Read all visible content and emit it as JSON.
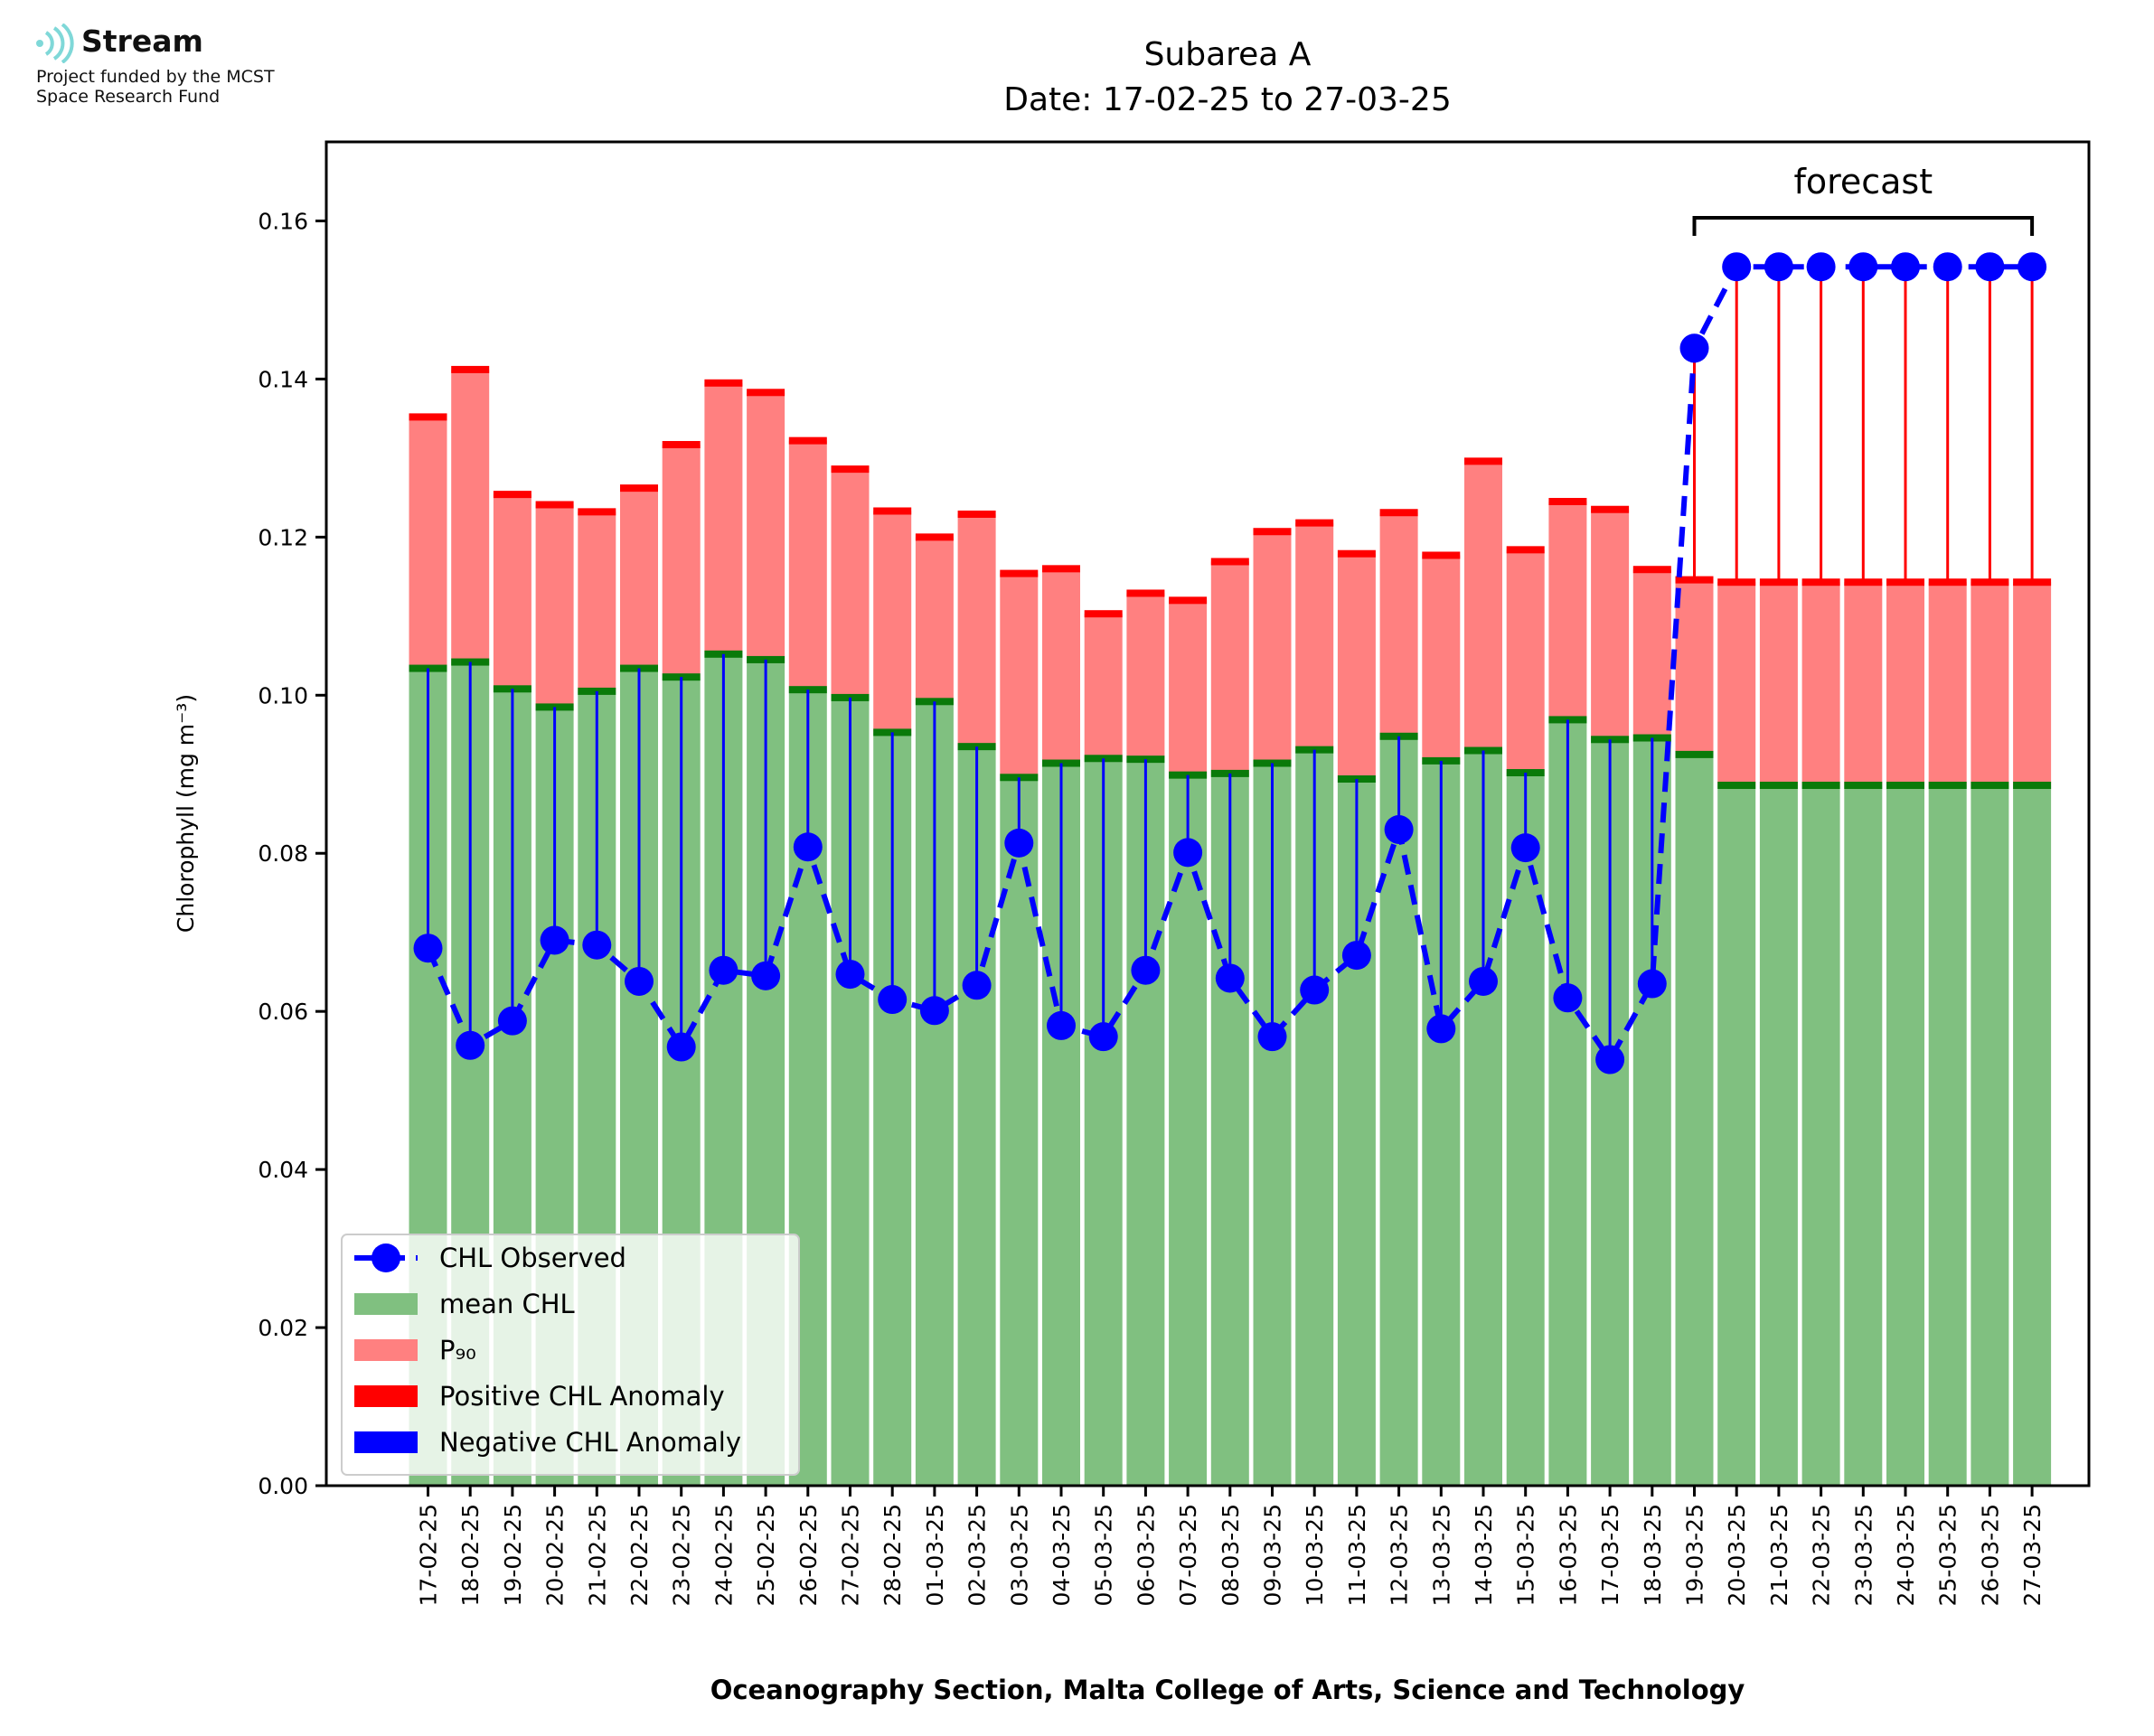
{
  "logo": {
    "name": "Stream",
    "line1": "Project funded by the MCST",
    "line2": "Space Research Fund",
    "icon": "stream-waves-icon",
    "color": "#7fd8d8"
  },
  "chart_data": {
    "type": "bar",
    "title": "Subarea A",
    "subtitle": "Date: 17-02-25 to 27-03-25",
    "xlabel": "Oceanography Section, Malta College of Arts, Science and Technology",
    "ylabel": "Chlorophyll (mg m⁻³)",
    "ylim": [
      0,
      0.17
    ],
    "yticks": [
      "0.00",
      "0.02",
      "0.04",
      "0.06",
      "0.08",
      "0.10",
      "0.12",
      "0.14",
      "0.16"
    ],
    "grid": false,
    "legend_position": "lower-left",
    "annotation": "forecast",
    "forecast_range": [
      "20-03-25",
      "27-03-25"
    ],
    "categories": [
      "17-02-25",
      "18-02-25",
      "19-02-25",
      "20-02-25",
      "21-02-25",
      "22-02-25",
      "23-02-25",
      "24-02-25",
      "25-02-25",
      "26-02-25",
      "27-02-25",
      "28-02-25",
      "01-03-25",
      "02-03-25",
      "03-03-25",
      "04-03-25",
      "05-03-25",
      "06-03-25",
      "07-03-25",
      "08-03-25",
      "09-03-25",
      "10-03-25",
      "11-03-25",
      "12-03-25",
      "13-03-25",
      "14-03-25",
      "15-03-25",
      "16-03-25",
      "17-03-25",
      "18-03-25",
      "19-03-25",
      "20-03-25",
      "21-03-25",
      "22-03-25",
      "23-03-25",
      "24-03-25",
      "25-03-25",
      "26-03-25",
      "27-03-25"
    ],
    "series": [
      {
        "name": "CHL Observed",
        "color": "#0000ff",
        "values": [
          0.068,
          0.0557,
          0.0588,
          0.069,
          0.0684,
          0.0638,
          0.0555,
          0.0652,
          0.0645,
          0.0808,
          0.0647,
          0.0615,
          0.0601,
          0.0633,
          0.0813,
          0.0582,
          0.0568,
          0.0652,
          0.0801,
          0.0642,
          0.0568,
          0.0627,
          0.0671,
          0.083,
          0.0578,
          0.0638,
          0.0807,
          0.0617,
          0.0539,
          0.0635,
          0.1439,
          0.1542,
          0.1542,
          0.1542,
          0.1542,
          0.1542,
          0.1542,
          0.1542,
          0.1542
        ]
      },
      {
        "name": "mean CHL",
        "color": "#80c080",
        "values": [
          0.1034,
          0.1042,
          0.1008,
          0.0985,
          0.1005,
          0.1034,
          0.1023,
          0.1052,
          0.1045,
          0.1007,
          0.0997,
          0.0953,
          0.0992,
          0.0935,
          0.0896,
          0.0914,
          0.092,
          0.0919,
          0.0899,
          0.0901,
          0.0914,
          0.0931,
          0.0894,
          0.0948,
          0.0917,
          0.093,
          0.0902,
          0.0969,
          0.0944,
          0.0946,
          0.0925,
          0.0886,
          0.0886,
          0.0886,
          0.0886,
          0.0886,
          0.0886,
          0.0886,
          0.0886
        ]
      },
      {
        "name": "P₉₀",
        "color": "#ff8080",
        "values": [
          0.1352,
          0.1412,
          0.1254,
          0.1241,
          0.1232,
          0.1262,
          0.1317,
          0.1395,
          0.1383,
          0.1322,
          0.1286,
          0.1233,
          0.12,
          0.1229,
          0.1154,
          0.116,
          0.1103,
          0.1129,
          0.112,
          0.1169,
          0.1207,
          0.1218,
          0.1179,
          0.1231,
          0.1177,
          0.1296,
          0.1184,
          0.1245,
          0.1235,
          0.1159,
          0.1146,
          0.1143,
          0.1143,
          0.1143,
          0.1143,
          0.1143,
          0.1143,
          0.1143,
          0.1143
        ]
      }
    ],
    "legend": [
      {
        "label": "CHL Observed",
        "color": "#0000ff",
        "marker": "line-dot"
      },
      {
        "label": "mean CHL",
        "color": "#80c080",
        "marker": "patch"
      },
      {
        "label": "P₉₀",
        "color": "#ff8080",
        "marker": "patch"
      },
      {
        "label": "Positive CHL Anomaly",
        "color": "#ff0000",
        "marker": "patch"
      },
      {
        "label": "Negative CHL Anomaly",
        "color": "#0000ff",
        "marker": "patch"
      }
    ]
  }
}
